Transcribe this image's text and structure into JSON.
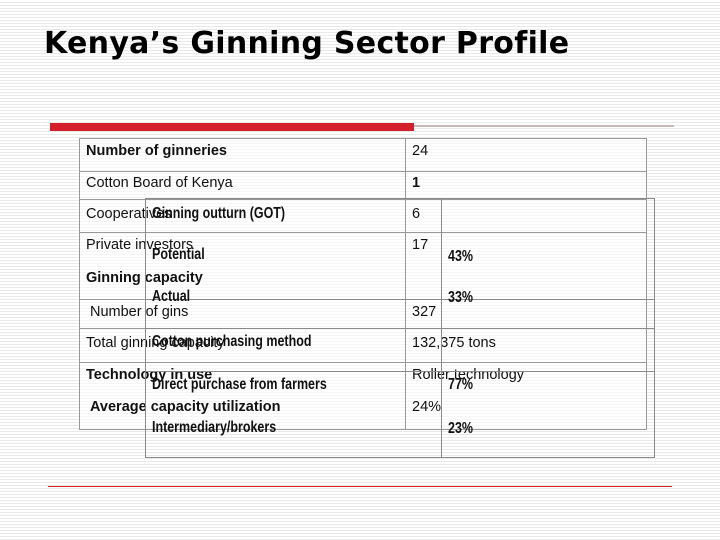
{
  "title": "Kenya’s Ginning Sector Profile",
  "table": {
    "rows": [
      {
        "label": "Number of ginneries",
        "value": "24"
      },
      {
        "label": "Cotton Board of Kenya",
        "value": "1"
      },
      {
        "label": "Cooperatives",
        "value": "6"
      },
      {
        "label": "Private investors",
        "value": "17"
      },
      {
        "label": "Ginning capacity",
        "value": ""
      },
      {
        "label": "Number of gins",
        "value": "327"
      },
      {
        "label": "Total ginning capacity",
        "value": "132,375 tons"
      },
      {
        "label": "Technology in use",
        "value": "Roller technology"
      },
      {
        "label": "Average capacity utilization",
        "value": "24%"
      }
    ]
  },
  "overlay_table": {
    "rows": [
      {
        "label": "Ginning outturn (GOT)",
        "value": ""
      },
      {
        "label": "Potential",
        "value": "43%"
      },
      {
        "label": "Actual",
        "value": "33%"
      },
      {
        "label": "Cotton purchasing method",
        "value": ""
      },
      {
        "label": "Direct purchase from farmers",
        "value": "77%"
      },
      {
        "label": "Intermediary/brokers",
        "value": "23%"
      }
    ]
  }
}
